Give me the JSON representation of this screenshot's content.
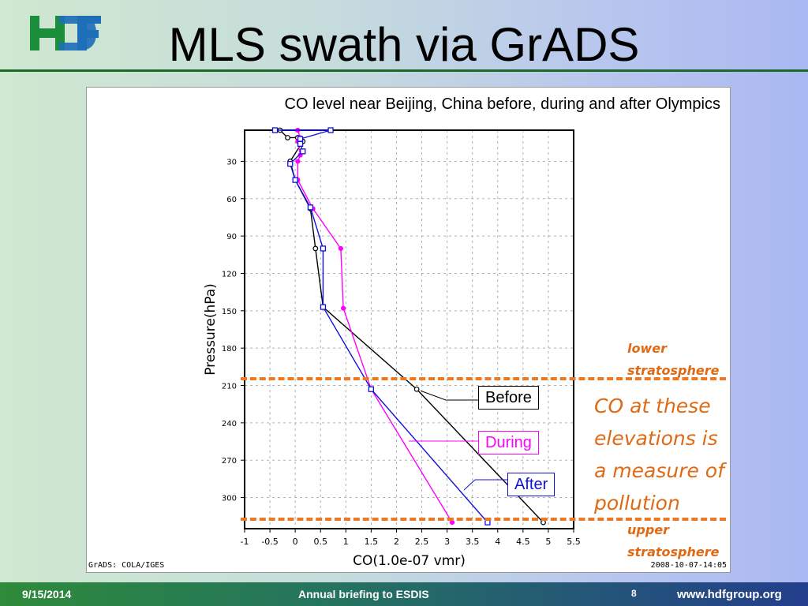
{
  "slide": {
    "logo_text": "HDF",
    "title": "MLS swath via GrADS",
    "footer": {
      "date": "9/15/2014",
      "center": "Annual briefing to ESDIS",
      "page": "8",
      "site": "www.hdfgroup.org"
    },
    "annotations": {
      "lower": "lower stratosphere",
      "main": "CO at these elevations is a measure of pollution",
      "upper": "upper stratosphere"
    },
    "colors": {
      "orange": "#ee7722",
      "before": "#000000",
      "during": "#ff00ff",
      "after": "#1010dd"
    }
  },
  "chart_data": {
    "type": "line",
    "title": "CO level near Beijing, China before, during and after Olympics",
    "xlabel": "CO(1.0e-07 vmr)",
    "ylabel": "Pressure(hPa)",
    "xlim": [
      -1,
      5.5
    ],
    "ylim": [
      5,
      325
    ],
    "y_inverted": true,
    "x_ticks": [
      -1,
      -0.5,
      0,
      0.5,
      1,
      1.5,
      2,
      2.5,
      3,
      3.5,
      4,
      4.5,
      5,
      5.5
    ],
    "x_tick_labels": [
      "-1",
      "-0.5",
      "0",
      "0.5",
      "1",
      "1.5",
      "2",
      "2.5",
      "3",
      "3.5",
      "4",
      "4.5",
      "5",
      "5.5"
    ],
    "y_ticks": [
      30,
      60,
      90,
      120,
      150,
      180,
      210,
      240,
      270,
      300
    ],
    "y_tick_labels": [
      "30",
      "60",
      "90",
      "120",
      "150",
      "180",
      "210",
      "240",
      "270",
      "300"
    ],
    "grid": true,
    "credit_left": "GrADS: COLA/IGES",
    "credit_right": "2008-10-07-14:05",
    "series": [
      {
        "name": "Before",
        "marker": "circle",
        "points": [
          [
            -0.3,
            5
          ],
          [
            -0.15,
            11
          ],
          [
            0.05,
            11
          ],
          [
            0.15,
            14
          ],
          [
            -0.1,
            30
          ],
          [
            0.0,
            45
          ],
          [
            0.3,
            68
          ],
          [
            0.4,
            100
          ],
          [
            0.55,
            147
          ],
          [
            2.4,
            213
          ],
          [
            4.9,
            320
          ]
        ]
      },
      {
        "name": "During",
        "marker": "circle",
        "points": [
          [
            0.05,
            5
          ],
          [
            0.1,
            11
          ],
          [
            0.05,
            14
          ],
          [
            0.1,
            25
          ],
          [
            0.05,
            30
          ],
          [
            0.05,
            45
          ],
          [
            0.35,
            68
          ],
          [
            0.9,
            100
          ],
          [
            0.95,
            148
          ],
          [
            1.5,
            213
          ],
          [
            3.1,
            320
          ]
        ]
      },
      {
        "name": "After",
        "marker": "square",
        "points": [
          [
            -0.4,
            5
          ],
          [
            0.7,
            5
          ],
          [
            0.1,
            12
          ],
          [
            0.1,
            16
          ],
          [
            0.15,
            22
          ],
          [
            -0.1,
            32
          ],
          [
            0.0,
            45
          ],
          [
            0.3,
            67
          ],
          [
            0.55,
            100
          ],
          [
            0.55,
            147
          ],
          [
            1.5,
            213
          ],
          [
            3.8,
            320
          ]
        ]
      }
    ]
  }
}
